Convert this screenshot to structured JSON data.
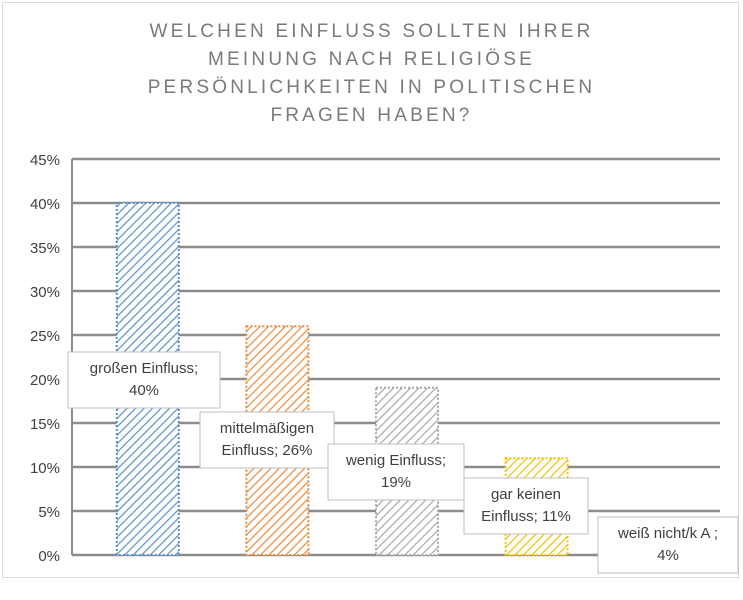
{
  "chart_data": {
    "type": "bar",
    "title_lines": [
      "WELCHEN EINFLUSS SOLLTEN IHRER",
      "MEINUNG NACH RELIGIÖSE",
      "PERSÖNLICHKEITEN IN POLITISCHEN",
      "FRAGEN HABEN?"
    ],
    "categories": [
      "großen Einfluss",
      "mittelmäßigen Einfluss",
      "wenig Einfluss",
      "gar keinen Einfluss",
      "weiß nicht/k A"
    ],
    "values": [
      40,
      26,
      19,
      11,
      4
    ],
    "data_labels": [
      [
        "großen Einfluss;",
        "40%"
      ],
      [
        "mittelmäßigen",
        "Einfluss; 26%"
      ],
      [
        "wenig Einfluss;",
        "19%"
      ],
      [
        "gar keinen",
        "Einfluss; 11%"
      ],
      [
        "weiß nicht/k A ;",
        "4%"
      ]
    ],
    "colors": [
      "#5b8ec9",
      "#e88a3c",
      "#a8a8a8",
      "#f2c200",
      "#6fa8dc"
    ],
    "ylim": [
      0,
      45
    ],
    "yticks": [
      "0%",
      "5%",
      "10%",
      "15%",
      "20%",
      "25%",
      "30%",
      "35%",
      "40%",
      "45%"
    ],
    "grid": true,
    "legend": "none"
  }
}
